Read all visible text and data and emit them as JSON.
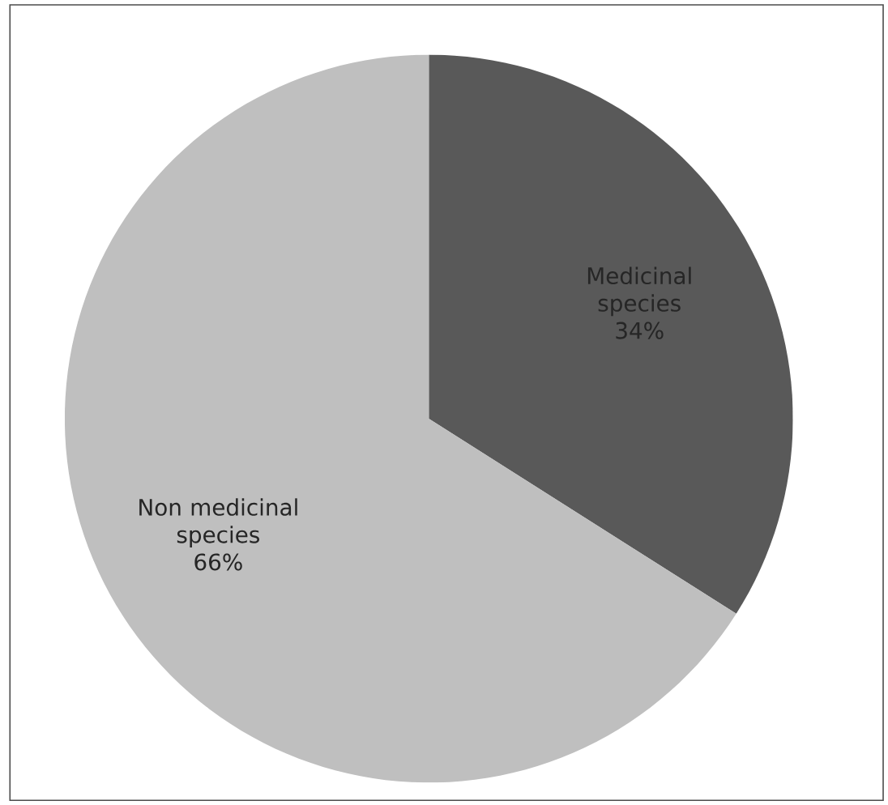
{
  "chart_data": {
    "type": "pie",
    "categories": [
      "Medicinal species",
      "Non medicinal species"
    ],
    "values": [
      34,
      66
    ],
    "colors": [
      "#595959",
      "#bfbfbf"
    ],
    "value_labels": [
      "34%",
      "66%"
    ]
  }
}
